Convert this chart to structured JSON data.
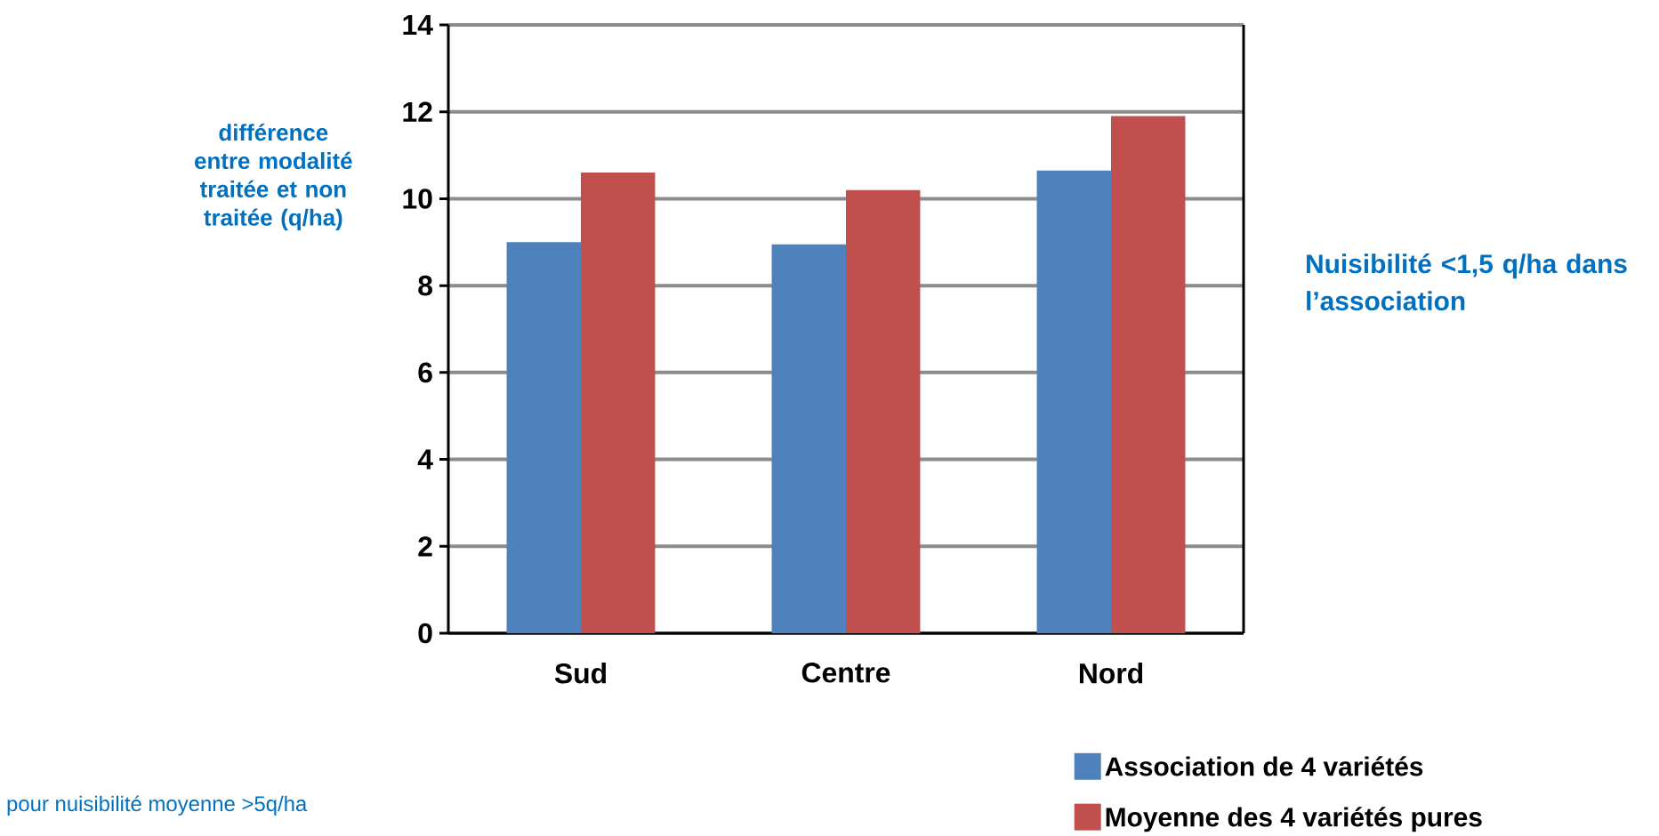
{
  "chart_data": {
    "type": "bar",
    "categories": [
      "Sud",
      "Centre",
      "Nord"
    ],
    "series": [
      {
        "name": "Association de 4 variétés",
        "color": "#4f81bd",
        "values": [
          9.0,
          8.95,
          10.65
        ]
      },
      {
        "name": "Moyenne des 4 variétés pures",
        "color": "#c0504d",
        "values": [
          10.6,
          10.2,
          11.9
        ]
      }
    ],
    "ylabel": "différence entre modalité traitée et non traitée (q/ha)",
    "ylim": [
      0,
      14
    ],
    "yticks": [
      0,
      2,
      4,
      6,
      8,
      10,
      12,
      14
    ],
    "grid": "y",
    "legend": "bottom right",
    "annotations": [
      "Nuisibilité <1,5 q/ha dans l’association",
      "pour nuisibilité moyenne >5q/ha"
    ]
  }
}
